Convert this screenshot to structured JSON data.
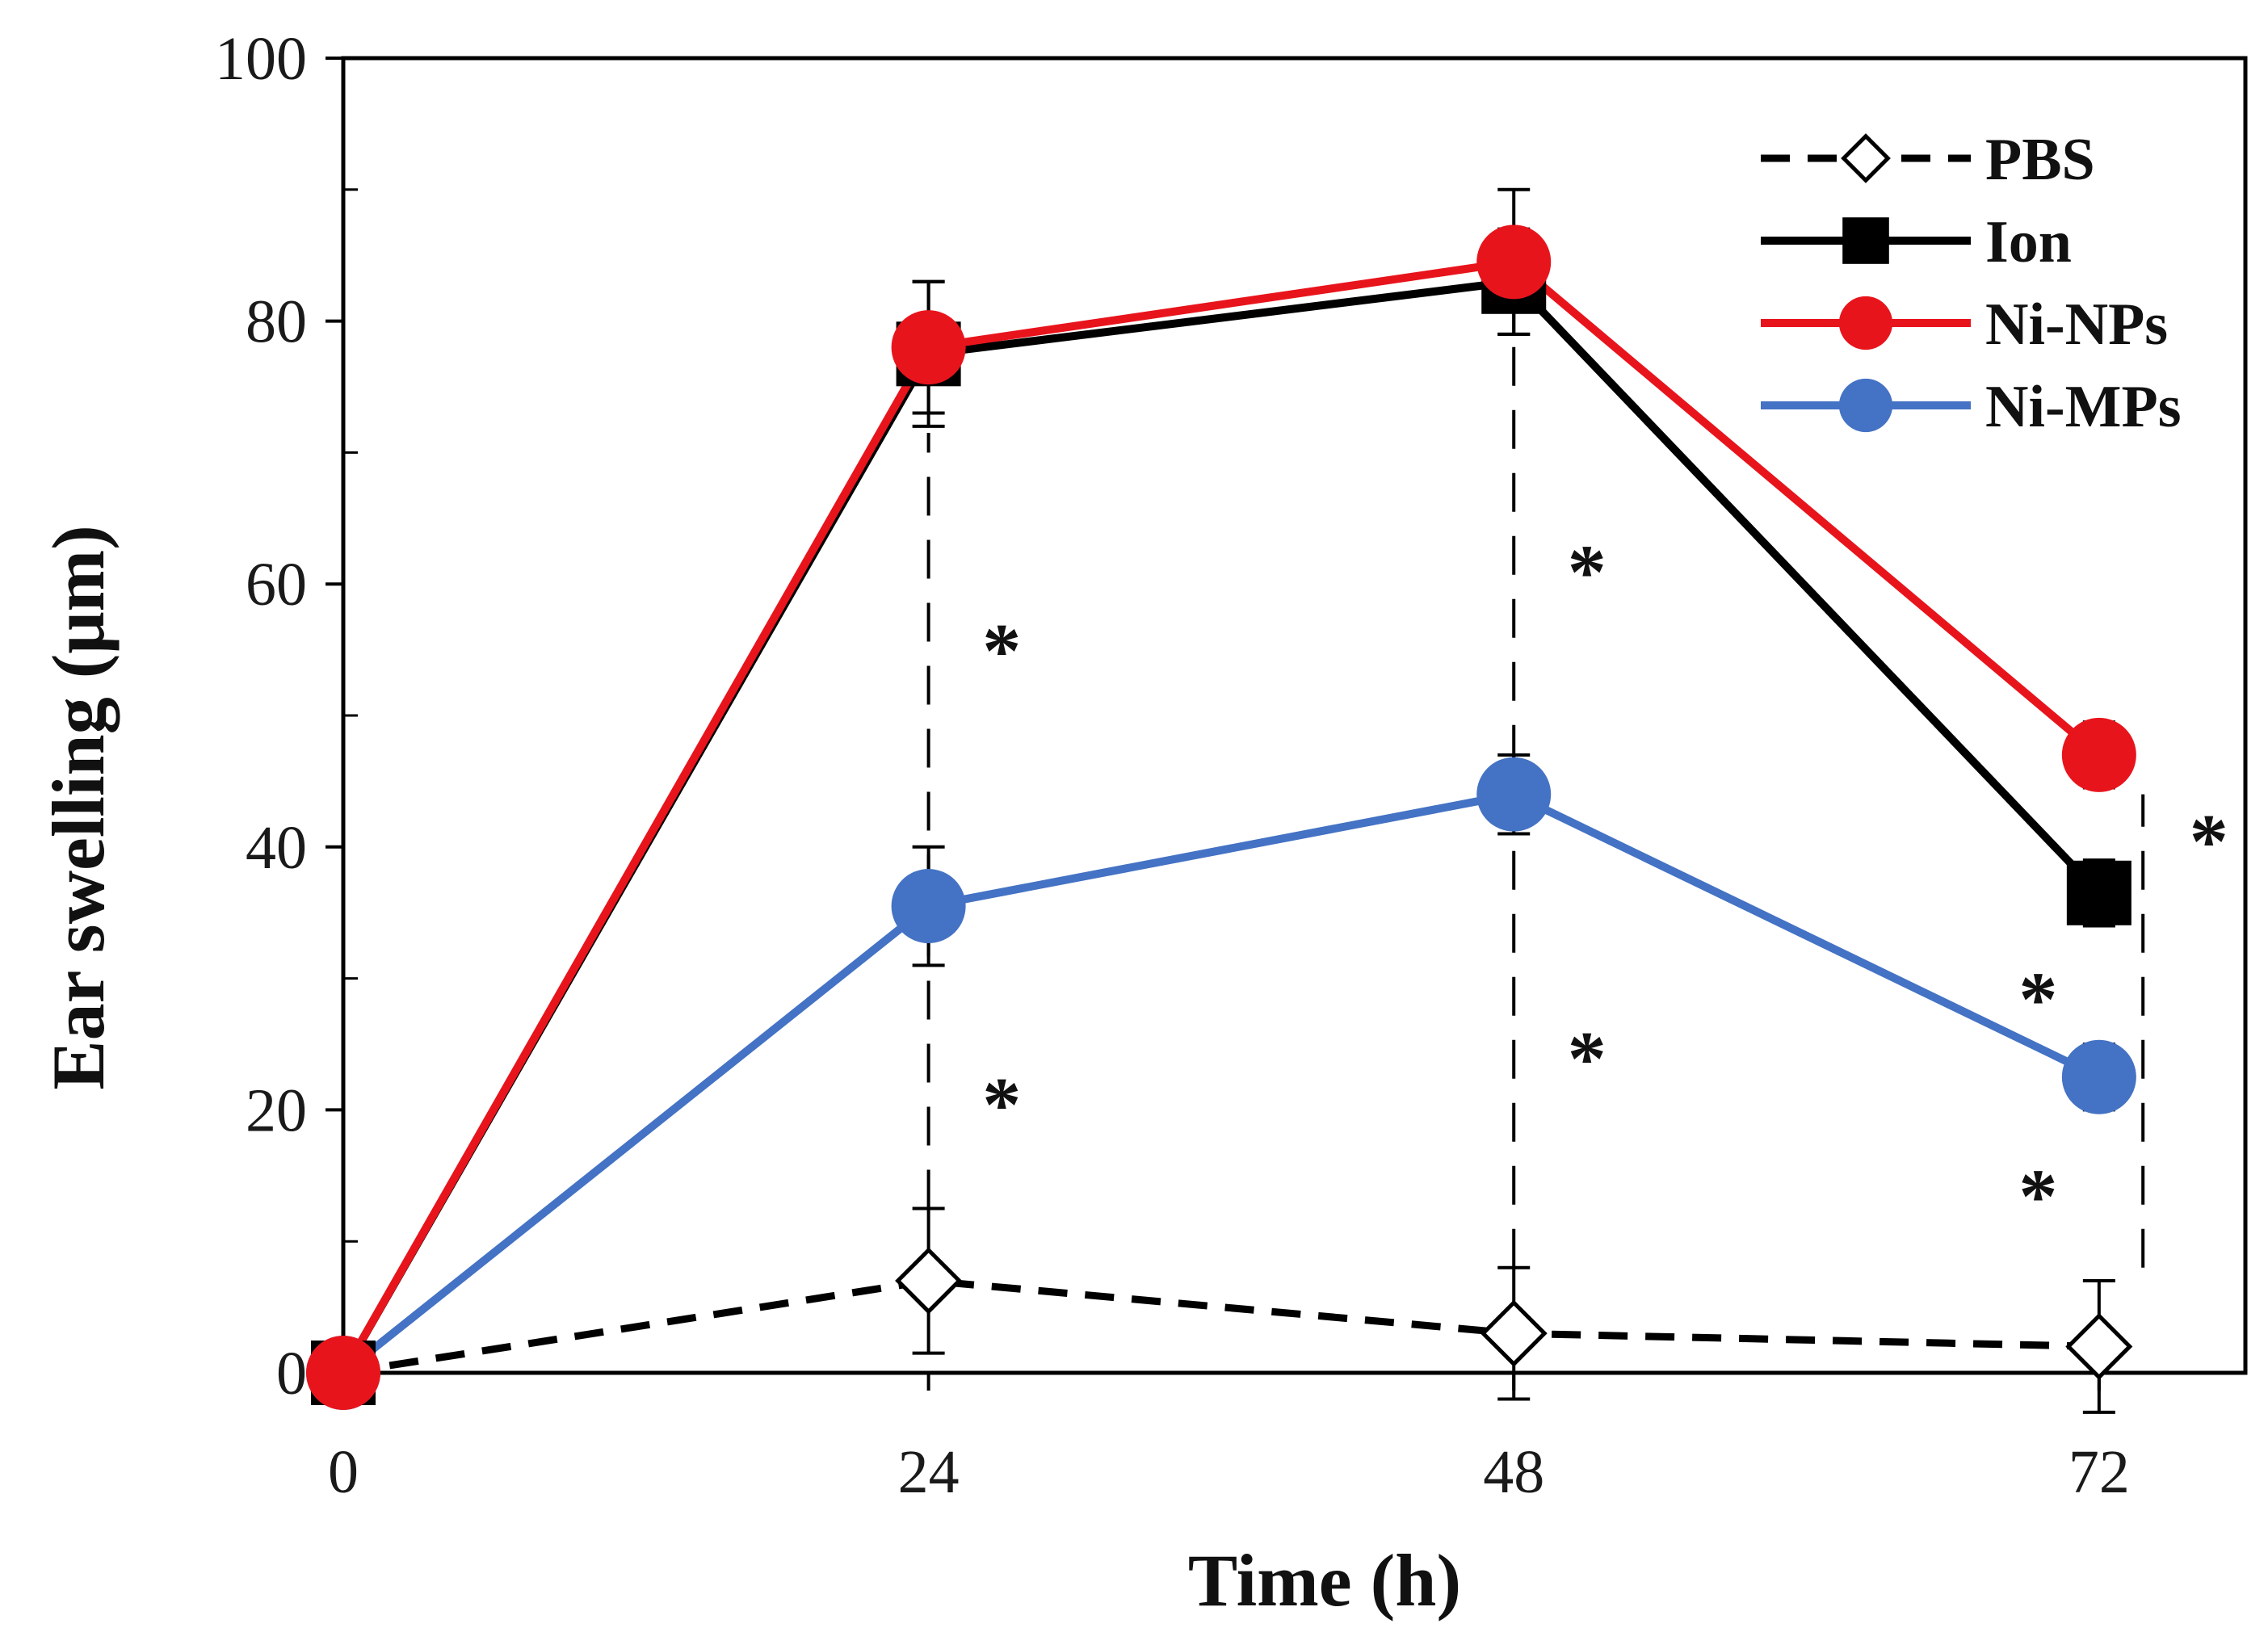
{
  "chart_data": {
    "type": "line",
    "title": "",
    "xlabel": "Time (h)",
    "ylabel": "Ear swelling (μm)",
    "x": [
      0,
      24,
      48,
      72
    ],
    "x_tick_labels": [
      "0",
      "24",
      "48",
      "72"
    ],
    "xlim": [
      0,
      78
    ],
    "ylim": [
      0,
      100
    ],
    "y_tick_labels": [
      "0",
      "20",
      "40",
      "60",
      "80",
      "100"
    ],
    "grid": false,
    "legend_position": "top-right",
    "series": [
      {
        "name": "PBS",
        "color": "#000000",
        "marker": "open-diamond",
        "dashed": true,
        "values": [
          0,
          7,
          3,
          2
        ],
        "errors": [
          0,
          5.5,
          5,
          5
        ]
      },
      {
        "name": "Ion",
        "color": "#000000",
        "marker": "filled-square",
        "dashed": false,
        "values": [
          0,
          77.5,
          83,
          36.5
        ],
        "errors": [
          0,
          5.5,
          4,
          2.5
        ]
      },
      {
        "name": "Ni-NPs",
        "color": "#e8141c",
        "marker": "filled-circle",
        "dashed": false,
        "values": [
          0,
          78,
          84.5,
          47
        ],
        "errors": [
          0,
          5,
          5.5,
          2.5
        ]
      },
      {
        "name": "Ni-MPs",
        "color": "#4472c4",
        "marker": "filled-circle",
        "dashed": false,
        "values": [
          0,
          35.5,
          44,
          22.5
        ],
        "errors": [
          0,
          4.5,
          3,
          2.5
        ]
      }
    ],
    "annotations": [
      {
        "text": "*",
        "x": 27,
        "y": 55
      },
      {
        "text": "*",
        "x": 27,
        "y": 20.5
      },
      {
        "text": "*",
        "x": 51,
        "y": 61
      },
      {
        "text": "*",
        "x": 51,
        "y": 24
      },
      {
        "text": "*",
        "x": 76.5,
        "y": 40.5
      },
      {
        "text": "*",
        "x": 69.5,
        "y": 28.5
      },
      {
        "text": "*",
        "x": 69.5,
        "y": 13.5
      }
    ],
    "significance_lines": [
      {
        "x": 24,
        "y_from": 12.5,
        "y_to": 71.5
      },
      {
        "x": 48,
        "y_from": 8,
        "y_to": 79
      },
      {
        "x": 73.8,
        "y_from": 8,
        "y_to": 44
      }
    ]
  }
}
